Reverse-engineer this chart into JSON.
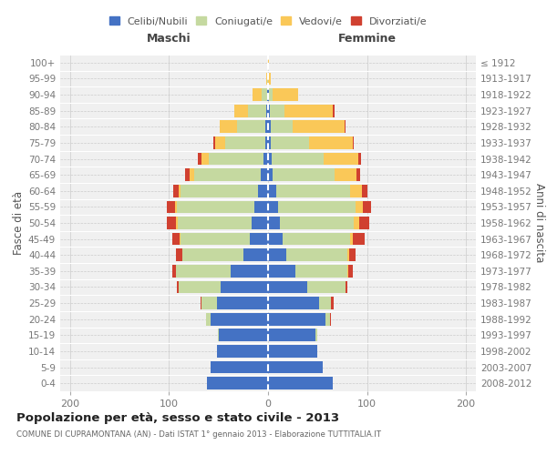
{
  "age_groups": [
    "0-4",
    "5-9",
    "10-14",
    "15-19",
    "20-24",
    "25-29",
    "30-34",
    "35-39",
    "40-44",
    "45-49",
    "50-54",
    "55-59",
    "60-64",
    "65-69",
    "70-74",
    "75-79",
    "80-84",
    "85-89",
    "90-94",
    "95-99",
    "100+"
  ],
  "birth_years": [
    "2008-2012",
    "2003-2007",
    "1998-2002",
    "1993-1997",
    "1988-1992",
    "1983-1987",
    "1978-1982",
    "1973-1977",
    "1968-1972",
    "1963-1967",
    "1958-1962",
    "1953-1957",
    "1948-1952",
    "1943-1947",
    "1938-1942",
    "1933-1937",
    "1928-1932",
    "1923-1927",
    "1918-1922",
    "1913-1917",
    "≤ 1912"
  ],
  "male_celibi": [
    62,
    58,
    52,
    50,
    58,
    52,
    48,
    38,
    25,
    18,
    17,
    14,
    10,
    7,
    5,
    3,
    3,
    2,
    1,
    0,
    0
  ],
  "male_coniugati": [
    0,
    0,
    0,
    1,
    5,
    15,
    42,
    55,
    62,
    70,
    74,
    78,
    78,
    68,
    55,
    40,
    28,
    18,
    5,
    1,
    0
  ],
  "male_vedovi": [
    0,
    0,
    0,
    0,
    0,
    0,
    0,
    0,
    0,
    1,
    2,
    2,
    2,
    4,
    7,
    10,
    18,
    14,
    10,
    1,
    0
  ],
  "male_divorziati": [
    0,
    0,
    0,
    0,
    0,
    1,
    2,
    4,
    6,
    8,
    9,
    8,
    6,
    5,
    4,
    2,
    0,
    0,
    0,
    0,
    0
  ],
  "female_celibi": [
    65,
    55,
    50,
    48,
    58,
    52,
    40,
    28,
    18,
    15,
    12,
    10,
    8,
    5,
    4,
    3,
    3,
    2,
    1,
    0,
    0
  ],
  "female_coniugati": [
    0,
    0,
    0,
    2,
    5,
    12,
    38,
    52,
    62,
    68,
    75,
    78,
    75,
    62,
    52,
    38,
    22,
    15,
    4,
    0,
    0
  ],
  "female_vedovi": [
    0,
    0,
    0,
    0,
    0,
    0,
    0,
    1,
    2,
    3,
    5,
    8,
    12,
    22,
    35,
    45,
    52,
    48,
    25,
    3,
    1
  ],
  "female_divorziati": [
    0,
    0,
    0,
    0,
    1,
    2,
    2,
    5,
    6,
    12,
    10,
    8,
    5,
    4,
    3,
    1,
    1,
    2,
    0,
    0,
    0
  ],
  "colors": {
    "celibi": "#4472C4",
    "coniugati": "#C5D9A0",
    "vedovi": "#FAC858",
    "divorziati": "#D04030"
  },
  "title": "Popolazione per età, sesso e stato civile - 2013",
  "subtitle": "COMUNE DI CUPRAMONTANA (AN) - Dati ISTAT 1° gennaio 2013 - Elaborazione TUTTITALIA.IT",
  "ylabel_left": "Fasce di età",
  "ylabel_right": "Anni di nascita",
  "xlabel_left": "Maschi",
  "xlabel_right": "Femmine",
  "xlim": [
    -210,
    210
  ],
  "xticks": [
    -200,
    -100,
    0,
    100,
    200
  ],
  "xticklabels": [
    "200",
    "100",
    "0",
    "100",
    "200"
  ],
  "bg_color": "#FFFFFF",
  "plot_bg": "#F0F0F0",
  "grid_color": "#CCCCCC"
}
